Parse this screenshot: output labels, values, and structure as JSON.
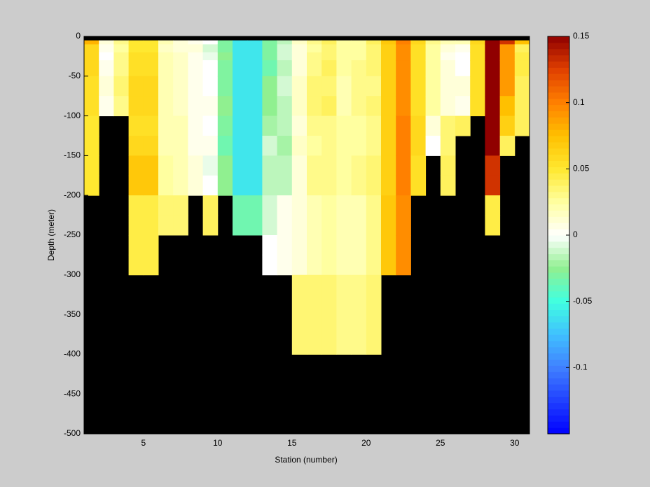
{
  "chart_data": {
    "type": "heatmap",
    "xlabel": "Station (number)",
    "ylabel": "Depth (meter)",
    "xlim": [
      1,
      31
    ],
    "ylim": [
      -500,
      0
    ],
    "xticks": [
      5,
      10,
      15,
      20,
      25,
      30
    ],
    "yticks": [
      0,
      -50,
      -100,
      -150,
      -200,
      -250,
      -300,
      -350,
      -400,
      -450,
      -500
    ],
    "x_edges": [
      1,
      2,
      3,
      4,
      5,
      6,
      7,
      8,
      9,
      10,
      11,
      12,
      13,
      14,
      15,
      16,
      17,
      18,
      19,
      20,
      21,
      22,
      23,
      24,
      25,
      26,
      27,
      28,
      29,
      30,
      31
    ],
    "y_edges": [
      0,
      -5,
      -10,
      -20,
      -30,
      -50,
      -75,
      -100,
      -125,
      -150,
      -175,
      -200,
      -225,
      -250,
      -275,
      -300,
      -400,
      -500
    ],
    "z": [
      [
        null,
        0.08,
        0.06,
        0.06,
        0.06,
        0.055,
        0.055,
        0.05,
        0.05,
        0.05,
        0.05,
        null,
        null,
        null,
        null,
        null,
        null
      ],
      [
        null,
        0.01,
        0.005,
        0,
        0.005,
        0.01,
        0.005,
        null,
        null,
        null,
        null,
        null,
        null,
        null,
        null,
        null,
        null
      ],
      [
        null,
        0.03,
        0.025,
        0.03,
        0.03,
        0.035,
        0.03,
        null,
        null,
        null,
        null,
        null,
        null,
        null,
        null,
        null,
        null
      ],
      [
        null,
        0.05,
        0.05,
        0.055,
        0.055,
        0.06,
        0.06,
        0.055,
        0.06,
        0.07,
        0.07,
        0.045,
        0.045,
        0.045,
        0.045,
        null,
        null
      ],
      [
        null,
        0.05,
        0.05,
        0.055,
        0.055,
        0.06,
        0.06,
        0.055,
        0.06,
        0.07,
        0.07,
        0.045,
        0.045,
        0.045,
        0.045,
        null,
        null
      ],
      [
        null,
        0.02,
        0.015,
        0.02,
        0.02,
        0.02,
        0.02,
        0.02,
        0.02,
        0.025,
        0.025,
        0.035,
        0.035,
        null,
        null,
        null,
        null
      ],
      [
        null,
        0.01,
        0.01,
        0.015,
        0.015,
        0.015,
        0.015,
        0.02,
        0.02,
        0.02,
        0.02,
        0.035,
        0.035,
        null,
        null,
        null,
        null
      ],
      [
        null,
        0.005,
        0.01,
        0.005,
        0.005,
        0.005,
        0.005,
        0.005,
        0.005,
        0.01,
        0.01,
        null,
        null,
        null,
        null,
        null,
        null
      ],
      [
        null,
        0,
        -0.01,
        -0.005,
        0,
        0,
        0.005,
        0,
        0.005,
        -0.005,
        0,
        0.04,
        0.04,
        null,
        null,
        null,
        null
      ],
      [
        null,
        -0.03,
        -0.03,
        -0.025,
        -0.03,
        -0.03,
        -0.025,
        -0.03,
        -0.035,
        -0.025,
        -0.025,
        null,
        null,
        null,
        null,
        null,
        null
      ],
      [
        null,
        -0.06,
        -0.06,
        -0.06,
        -0.06,
        -0.06,
        -0.06,
        -0.06,
        -0.06,
        -0.06,
        -0.06,
        -0.035,
        -0.035,
        null,
        null,
        null,
        null
      ],
      [
        null,
        -0.06,
        -0.06,
        -0.06,
        -0.06,
        -0.06,
        -0.06,
        -0.06,
        -0.06,
        -0.06,
        -0.06,
        -0.035,
        -0.035,
        null,
        null,
        null,
        null
      ],
      [
        null,
        -0.03,
        -0.03,
        -0.03,
        -0.035,
        -0.025,
        -0.025,
        -0.02,
        -0.01,
        -0.015,
        -0.015,
        -0.01,
        -0.01,
        0,
        0,
        null,
        null
      ],
      [
        null,
        -0.015,
        -0.01,
        -0.01,
        -0.015,
        -0.01,
        -0.015,
        -0.015,
        -0.02,
        -0.015,
        -0.015,
        0.005,
        0.005,
        0.005,
        0.005,
        null,
        null
      ],
      [
        null,
        0.015,
        0.01,
        0.01,
        0.01,
        0.015,
        0.015,
        0.01,
        0.015,
        0.01,
        0.01,
        0.01,
        0.01,
        0.01,
        0.01,
        0.035,
        null
      ],
      [
        null,
        0.03,
        0.025,
        0.03,
        0.03,
        0.035,
        0.035,
        0.03,
        0.025,
        0.03,
        0.03,
        0.02,
        0.02,
        0.02,
        0.02,
        0.035,
        null
      ],
      [
        null,
        0.04,
        0.035,
        0.035,
        0.04,
        0.035,
        0.04,
        0.03,
        0.03,
        0.03,
        0.03,
        0.025,
        0.025,
        0.025,
        0.025,
        0.035,
        null
      ],
      [
        null,
        0.025,
        0.025,
        0.025,
        0.025,
        0.02,
        0.02,
        0.025,
        0.025,
        0.025,
        0.025,
        0.02,
        0.02,
        0.02,
        0.02,
        0.03,
        null
      ],
      [
        null,
        0.025,
        0.025,
        0.025,
        0.03,
        0.03,
        0.03,
        0.025,
        0.025,
        0.03,
        0.03,
        0.02,
        0.02,
        0.02,
        0.02,
        0.03,
        null
      ],
      [
        null,
        0.04,
        0.035,
        0.035,
        0.035,
        0.03,
        0.035,
        0.03,
        0.03,
        0.035,
        0.035,
        0.03,
        0.03,
        0.03,
        0.03,
        0.035,
        null
      ],
      [
        null,
        0.07,
        0.065,
        0.065,
        0.065,
        0.065,
        0.065,
        0.065,
        0.065,
        0.065,
        0.065,
        0.07,
        0.07,
        0.07,
        0.07,
        null,
        null
      ],
      [
        null,
        0.1,
        0.095,
        0.095,
        0.095,
        0.095,
        0.095,
        0.1,
        0.1,
        0.1,
        0.1,
        0.095,
        0.095,
        0.095,
        0.095,
        null,
        null
      ],
      [
        null,
        0.06,
        0.055,
        0.055,
        0.055,
        0.055,
        0.055,
        0.06,
        0.06,
        0.055,
        0.055,
        null,
        null,
        null,
        null,
        null,
        null
      ],
      [
        null,
        0.03,
        0.025,
        0.025,
        0.025,
        0.025,
        0.025,
        0.01,
        0,
        null,
        null,
        null,
        null,
        null,
        null,
        null,
        null
      ],
      [
        null,
        0.02,
        0.01,
        0.005,
        0.01,
        0.01,
        0.01,
        0.035,
        0.035,
        0.04,
        0.04,
        null,
        null,
        null,
        null,
        null,
        null
      ],
      [
        null,
        0.02,
        0.005,
        0,
        0,
        0.01,
        0.005,
        0.04,
        null,
        null,
        null,
        null,
        null,
        null,
        null,
        null,
        null
      ],
      [
        null,
        0.06,
        0.055,
        0.055,
        0.055,
        0.055,
        0.055,
        null,
        null,
        null,
        null,
        null,
        null,
        null,
        null,
        null,
        null
      ],
      [
        null,
        0.15,
        0.15,
        0.15,
        0.15,
        0.15,
        0.15,
        0.15,
        0.15,
        0.13,
        0.13,
        0.045,
        0.045,
        null,
        null,
        null,
        null
      ],
      [
        null,
        0.13,
        0.09,
        0.09,
        0.09,
        0.09,
        0.075,
        0.065,
        0.04,
        null,
        null,
        null,
        null,
        null,
        null,
        null,
        null
      ],
      [
        null,
        0.075,
        0.04,
        0.045,
        0.045,
        0.04,
        0.04,
        0.04,
        null,
        null,
        null,
        null,
        null,
        null,
        null,
        null,
        null
      ]
    ],
    "clim": [
      -0.15,
      0.15
    ],
    "cticks": [
      0.15,
      0.1,
      0.05,
      0,
      -0.05,
      -0.1
    ],
    "colormap": [
      "#0000ff",
      "#2040ff",
      "#4080ff",
      "#40c0ff",
      "#40ffe0",
      "#90f090",
      "#ffffff",
      "#ffffa0",
      "#ffe830",
      "#ffc000",
      "#ff8000",
      "#e04000",
      "#900000"
    ],
    "nan_color": "#000000"
  }
}
